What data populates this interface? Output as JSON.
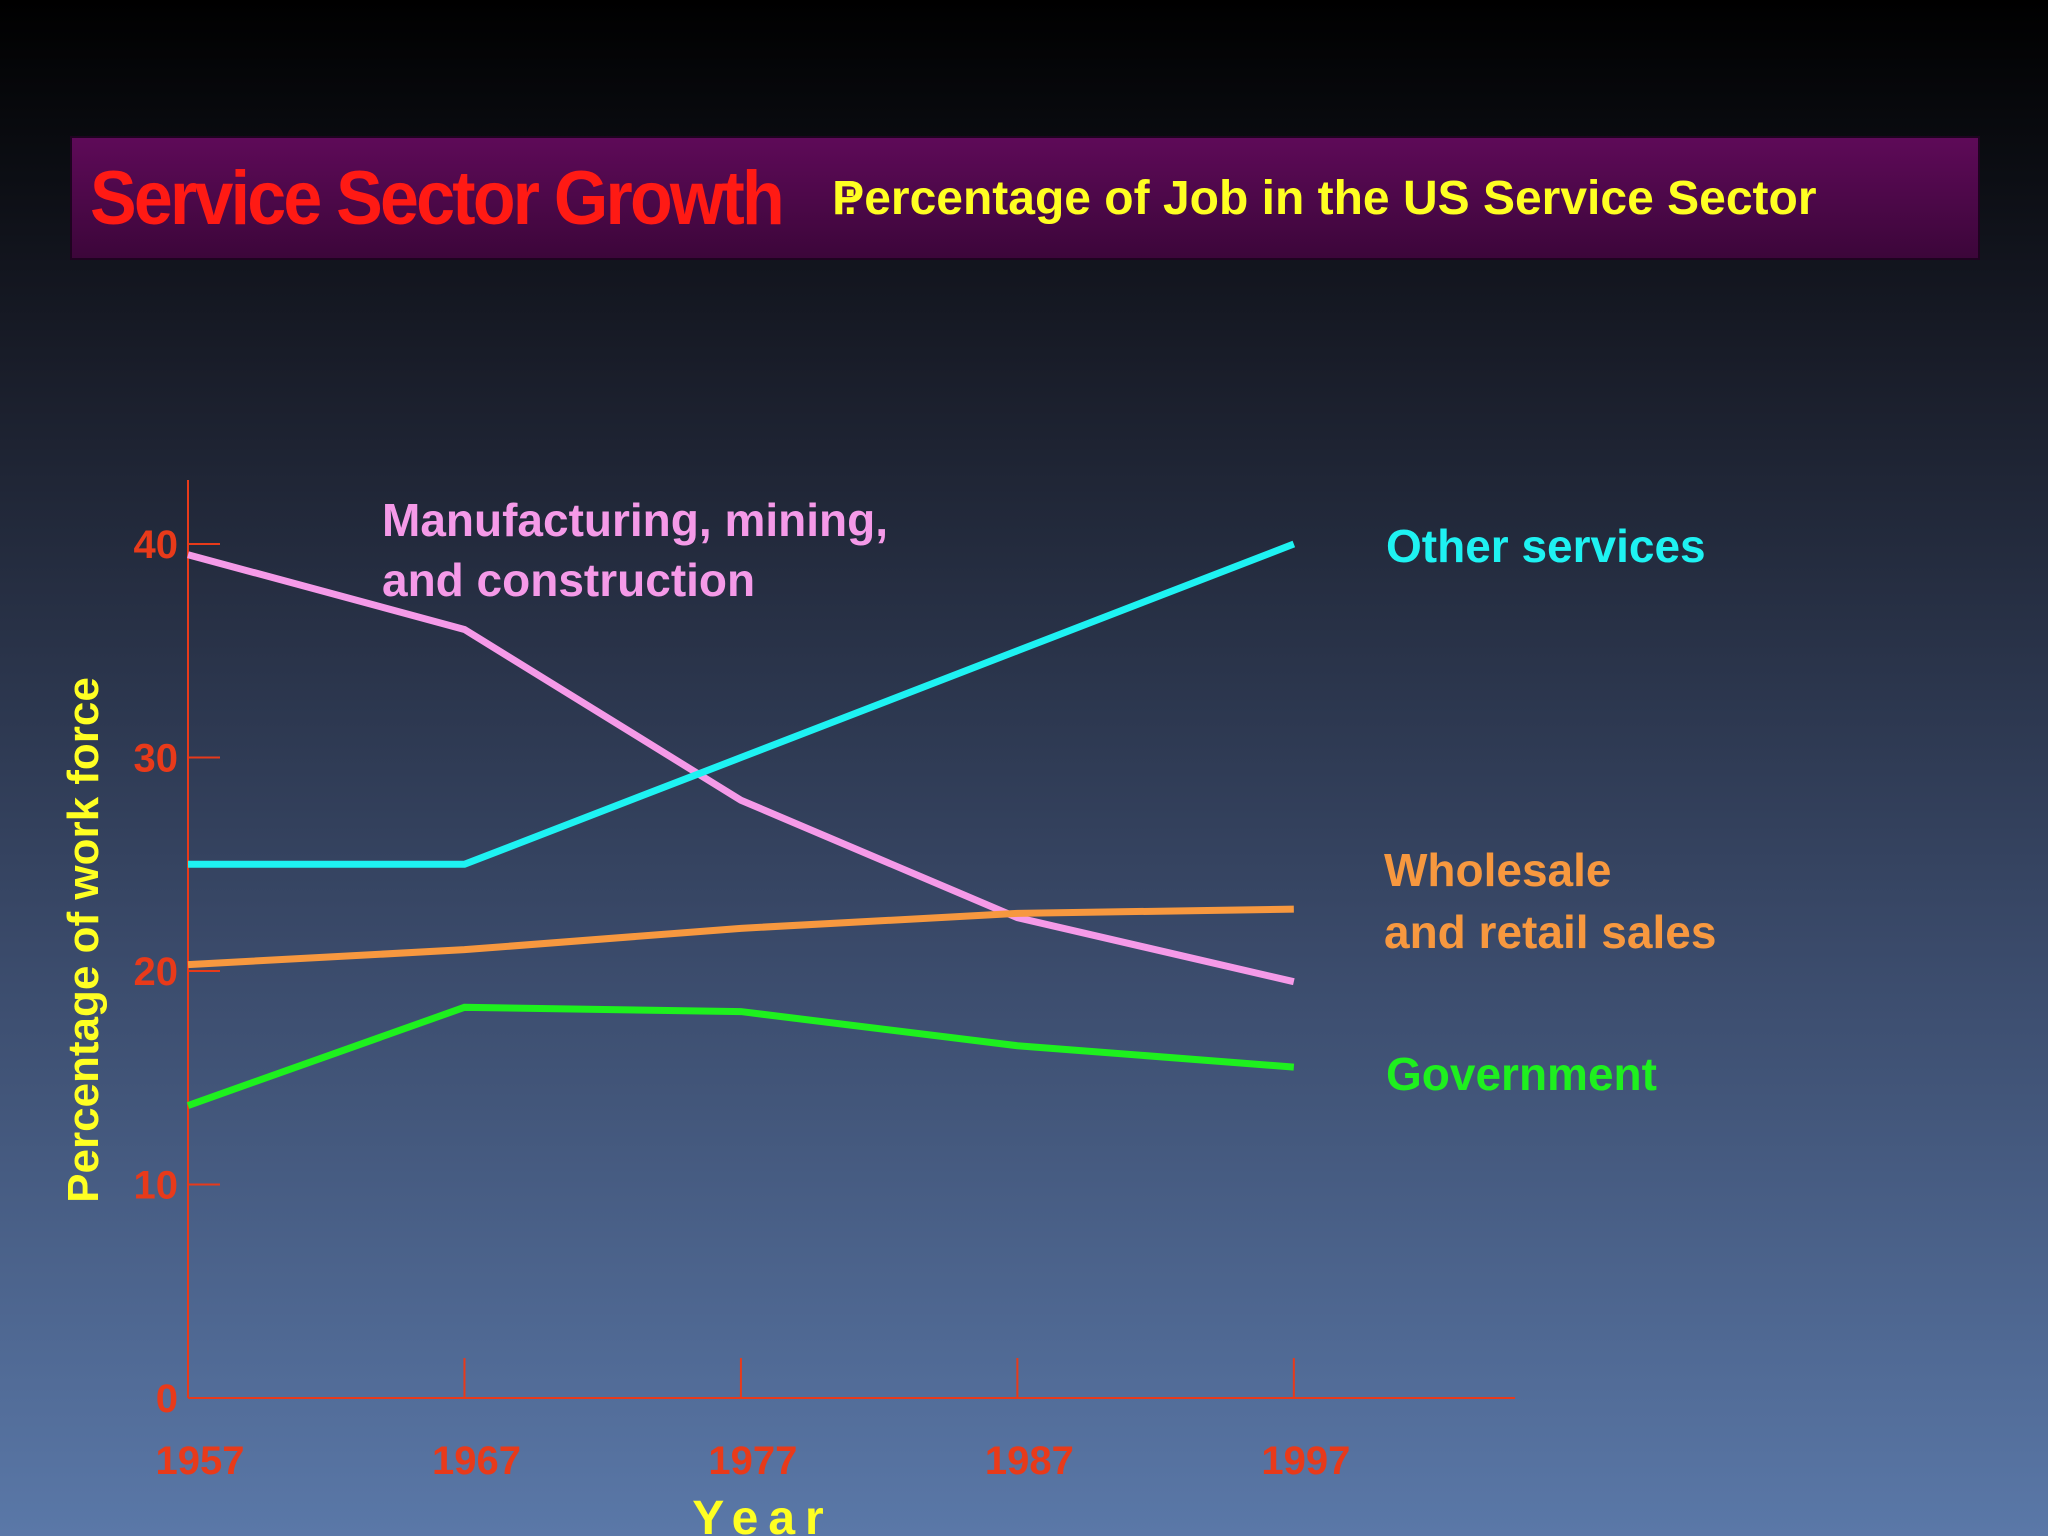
{
  "title": {
    "main": "Service Sector Growth",
    "separator": ":",
    "subtitle": "Percentage of Job in the US Service Sector"
  },
  "colors": {
    "axis": "#e83a1a",
    "axis_label": "#ffff22",
    "title_red": "#ff1a14",
    "banner": "#4a0848"
  },
  "chart_data": {
    "type": "line",
    "ylabel": "Percentage of work force",
    "xlabel": "Year",
    "ylim": [
      0,
      43
    ],
    "yticks": [
      0,
      10,
      20,
      30,
      40
    ],
    "xlim": [
      1957,
      2005
    ],
    "xticks": [
      1957,
      1967,
      1977,
      1987,
      1997
    ],
    "grid": false,
    "series": [
      {
        "name": "Manufacturing, mining, and construction",
        "label_lines": [
          "Manufacturing, mining,",
          "and construction"
        ],
        "color": "#f59ae8",
        "x": [
          1957,
          1967,
          1977,
          1987,
          1997
        ],
        "y": [
          39.5,
          36.0,
          28.0,
          22.5,
          19.5
        ]
      },
      {
        "name": "Other services",
        "label_lines": [
          "Other services"
        ],
        "color": "#1ef2f2",
        "x": [
          1957,
          1967,
          1977,
          1987,
          1997
        ],
        "y": [
          25.0,
          25.0,
          30.0,
          35.0,
          40.0
        ]
      },
      {
        "name": "Wholesale and retail sales",
        "label_lines": [
          "Wholesale",
          "and retail sales"
        ],
        "color": "#f7983f",
        "x": [
          1957,
          1967,
          1977,
          1987,
          1997
        ],
        "y": [
          20.3,
          21.0,
          22.0,
          22.7,
          22.9
        ]
      },
      {
        "name": "Government",
        "label_lines": [
          "Government"
        ],
        "color": "#1ef01e",
        "x": [
          1957,
          1967,
          1977,
          1987,
          1997
        ],
        "y": [
          13.7,
          18.3,
          18.1,
          16.5,
          15.5
        ]
      }
    ]
  }
}
